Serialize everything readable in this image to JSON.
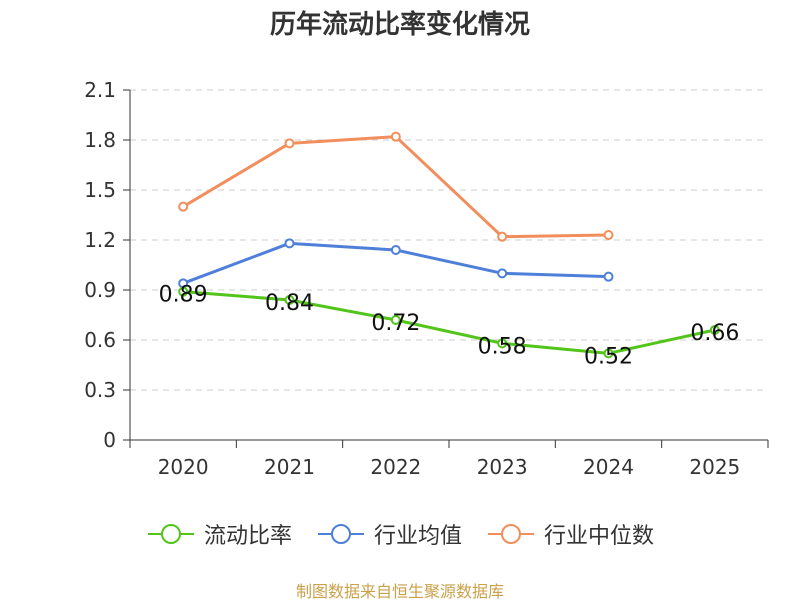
{
  "chart_data": {
    "type": "line",
    "title": "历年流动比率变化情况",
    "categories": [
      "2020",
      "2021",
      "2022",
      "2023",
      "2024",
      "2025"
    ],
    "ylim": [
      0,
      2.1
    ],
    "yticks": [
      "0",
      "0.3",
      "0.6",
      "0.9",
      "1.2",
      "1.5",
      "1.8",
      "2.1"
    ],
    "grid": true,
    "series": [
      {
        "name": "流动比率",
        "color": "#52c41a",
        "values": [
          0.89,
          0.84,
          0.72,
          0.58,
          0.52,
          0.66
        ],
        "labels": [
          "0.89",
          "0.84",
          "0.72",
          "0.58",
          "0.52",
          "0.66"
        ]
      },
      {
        "name": "行业均值",
        "color": "#4e7fd9",
        "values": [
          0.94,
          1.18,
          1.14,
          1.0,
          0.98,
          null
        ]
      },
      {
        "name": "行业中位数",
        "color": "#f28e5c",
        "values": [
          1.4,
          1.78,
          1.82,
          1.22,
          1.23,
          null
        ]
      }
    ],
    "legend": "bottom"
  },
  "source": "制图数据来自恒生聚源数据库"
}
